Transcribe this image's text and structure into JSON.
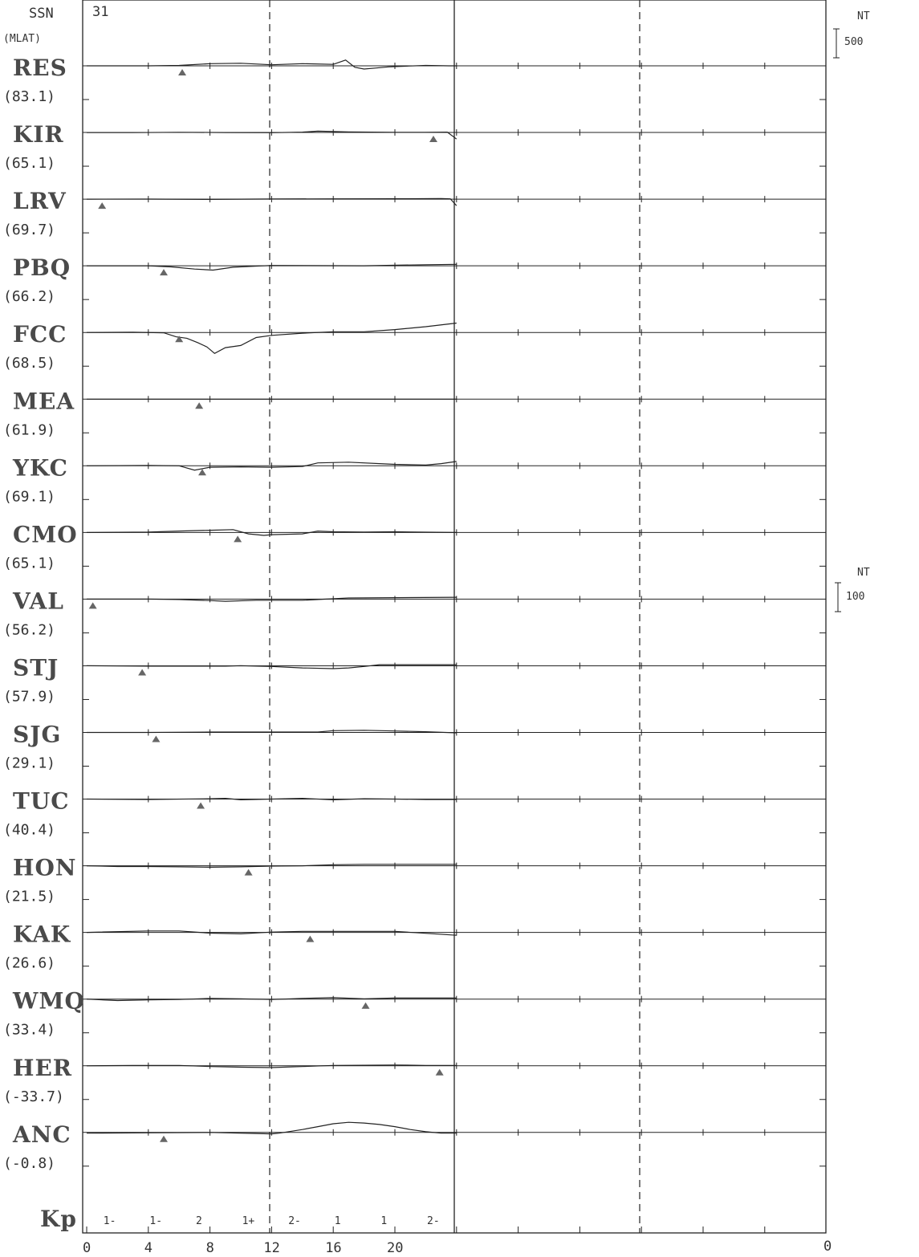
{
  "header": {
    "ssn_label": "SSN",
    "mlat_label": "(MLAT)",
    "day": "31",
    "scale_top": {
      "unit": "NT",
      "value": "500"
    },
    "scale_mid": {
      "unit": "NT",
      "value": "100"
    }
  },
  "kp": {
    "label": "Kp",
    "values": [
      "1-",
      "1-",
      "2",
      "1+",
      "2-",
      "1",
      "1",
      "2-"
    ]
  },
  "chart_data": {
    "type": "line",
    "title": "",
    "xlabel": "",
    "ylabel": "",
    "xlim": [
      0,
      48
    ],
    "x_ticks": [
      "0",
      "4",
      "8",
      "12",
      "16",
      "20"
    ],
    "x_end_label": "0",
    "dashed_lines_at_hours": [
      12,
      36
    ],
    "data_end_hour": 24,
    "series": [
      {
        "name": "RES",
        "mlat": "(83.1)",
        "marker_hour": 6.2,
        "x": [
          0,
          2,
          4,
          6,
          8,
          10,
          12,
          14,
          16,
          16.8,
          17.4,
          18,
          18.8,
          19.6,
          20.6,
          22,
          23.5,
          24
        ],
        "y": [
          0,
          0,
          0,
          5,
          30,
          35,
          15,
          30,
          20,
          80,
          -20,
          -45,
          -30,
          -15,
          -5,
          5,
          0,
          0
        ]
      },
      {
        "name": "KIR",
        "mlat": "(65.1)",
        "marker_hour": 22.5,
        "x": [
          0,
          3,
          6,
          9,
          12,
          14,
          15,
          17,
          20,
          22,
          23.4,
          24
        ],
        "y": [
          0,
          -2,
          3,
          0,
          -3,
          5,
          18,
          8,
          2,
          3,
          5,
          -90
        ]
      },
      {
        "name": "LRV",
        "mlat": "(69.7)",
        "marker_hour": 1.0,
        "x": [
          0,
          4,
          8,
          12,
          16,
          20,
          23,
          23.6,
          24
        ],
        "y": [
          0,
          1,
          -3,
          2,
          5,
          6,
          8,
          5,
          -90
        ]
      },
      {
        "name": "PBQ",
        "mlat": "(66.2)",
        "marker_hour": 5.0,
        "x": [
          0,
          4,
          5.5,
          7,
          8.2,
          9.5,
          12,
          18,
          22,
          24
        ],
        "y": [
          0,
          0,
          -15,
          -45,
          -60,
          -20,
          5,
          0,
          15,
          20
        ]
      },
      {
        "name": "FCC",
        "mlat": "(68.5)",
        "marker_hour": 6.0,
        "x": [
          0,
          3,
          5,
          5.8,
          6.5,
          7.2,
          7.8,
          8.3,
          9,
          10,
          11,
          12,
          14,
          16,
          18,
          20,
          22,
          24
        ],
        "y": [
          0,
          3,
          -5,
          -60,
          -80,
          -140,
          -200,
          -290,
          -210,
          -180,
          -70,
          -40,
          -10,
          10,
          10,
          40,
          80,
          130
        ]
      },
      {
        "name": "MEA",
        "mlat": "(61.9)",
        "marker_hour": 7.3,
        "x": [
          0,
          6,
          12,
          18,
          24
        ],
        "y": [
          0,
          0,
          0,
          0,
          0
        ]
      },
      {
        "name": "YKC",
        "mlat": "(69.1)",
        "marker_hour": 7.5,
        "x": [
          0,
          4,
          6,
          7,
          8,
          10,
          12,
          14,
          15,
          17,
          20,
          22,
          23,
          24
        ],
        "y": [
          0,
          5,
          0,
          -60,
          -20,
          -15,
          -20,
          -10,
          40,
          50,
          20,
          10,
          30,
          60
        ]
      },
      {
        "name": "CMO",
        "mlat": "(65.1)",
        "marker_hour": 9.8,
        "x": [
          0,
          4,
          6,
          8,
          9.5,
          10.5,
          11.5,
          12,
          14,
          15,
          16,
          18,
          20,
          24
        ],
        "y": [
          0,
          5,
          20,
          30,
          40,
          -20,
          -40,
          -30,
          -20,
          20,
          10,
          5,
          10,
          0
        ]
      },
      {
        "name": "VAL",
        "mlat": "(56.2)",
        "marker_hour": 0.4,
        "x": [
          0,
          4,
          6,
          8,
          9,
          11,
          14,
          17,
          20,
          24
        ],
        "y": [
          0,
          0,
          -5,
          -20,
          -30,
          -15,
          -15,
          15,
          20,
          25
        ]
      },
      {
        "name": "STJ",
        "mlat": "(57.9)",
        "marker_hour": 3.6,
        "x": [
          0,
          4,
          7,
          9,
          10,
          12,
          14,
          16,
          17,
          18,
          19,
          21,
          24
        ],
        "y": [
          0,
          -5,
          -5,
          -5,
          0,
          -10,
          -30,
          -40,
          -30,
          -10,
          15,
          15,
          15
        ]
      },
      {
        "name": "SJG",
        "mlat": "(29.1)",
        "marker_hour": 4.5,
        "x": [
          0,
          4,
          8,
          12,
          15,
          16,
          18,
          20,
          22,
          24
        ],
        "y": [
          0,
          0,
          5,
          5,
          5,
          25,
          30,
          20,
          10,
          -5
        ]
      },
      {
        "name": "TUC",
        "mlat": "(40.4)",
        "marker_hour": 7.4,
        "x": [
          0,
          4,
          8,
          9,
          10,
          12,
          14,
          16,
          18,
          20,
          22,
          24
        ],
        "y": [
          0,
          -5,
          5,
          10,
          -10,
          0,
          10,
          -10,
          5,
          0,
          -5,
          -5
        ]
      },
      {
        "name": "HON",
        "mlat": "(21.5)",
        "marker_hour": 10.5,
        "x": [
          0,
          2,
          4,
          6,
          8,
          10,
          12,
          14,
          16,
          18,
          20,
          24
        ],
        "y": [
          0,
          -10,
          -10,
          -15,
          -20,
          -15,
          -5,
          0,
          15,
          20,
          20,
          20
        ]
      },
      {
        "name": "KAK",
        "mlat": "(26.6)",
        "marker_hour": 14.5,
        "x": [
          0,
          4,
          6,
          8,
          10,
          12,
          14,
          16,
          20,
          24
        ],
        "y": [
          0,
          20,
          20,
          -10,
          -20,
          5,
          15,
          15,
          15,
          -40
        ]
      },
      {
        "name": "WMQ",
        "mlat": "(33.4)",
        "marker_hour": 18.1,
        "x": [
          0,
          2,
          4,
          6,
          8,
          10,
          12,
          14,
          16,
          18,
          20,
          24
        ],
        "y": [
          0,
          -20,
          -10,
          -5,
          10,
          5,
          -5,
          10,
          20,
          5,
          15,
          15
        ]
      },
      {
        "name": "HER",
        "mlat": "(-33.7)",
        "marker_hour": 22.9,
        "x": [
          0,
          3,
          6,
          8,
          10,
          12,
          14,
          16,
          20,
          22,
          24
        ],
        "y": [
          0,
          5,
          5,
          -10,
          -20,
          -25,
          -10,
          5,
          10,
          5,
          5
        ]
      },
      {
        "name": "ANC",
        "mlat": "(-0.8)",
        "marker_hour": 5.0,
        "x": [
          0,
          4,
          8,
          12,
          12.5,
          14,
          15,
          16,
          17,
          18,
          19,
          20,
          21,
          22,
          23,
          24
        ],
        "y": [
          -10,
          -5,
          0,
          -20,
          -10,
          40,
          80,
          120,
          140,
          130,
          110,
          80,
          40,
          10,
          -10,
          -10
        ]
      }
    ]
  }
}
